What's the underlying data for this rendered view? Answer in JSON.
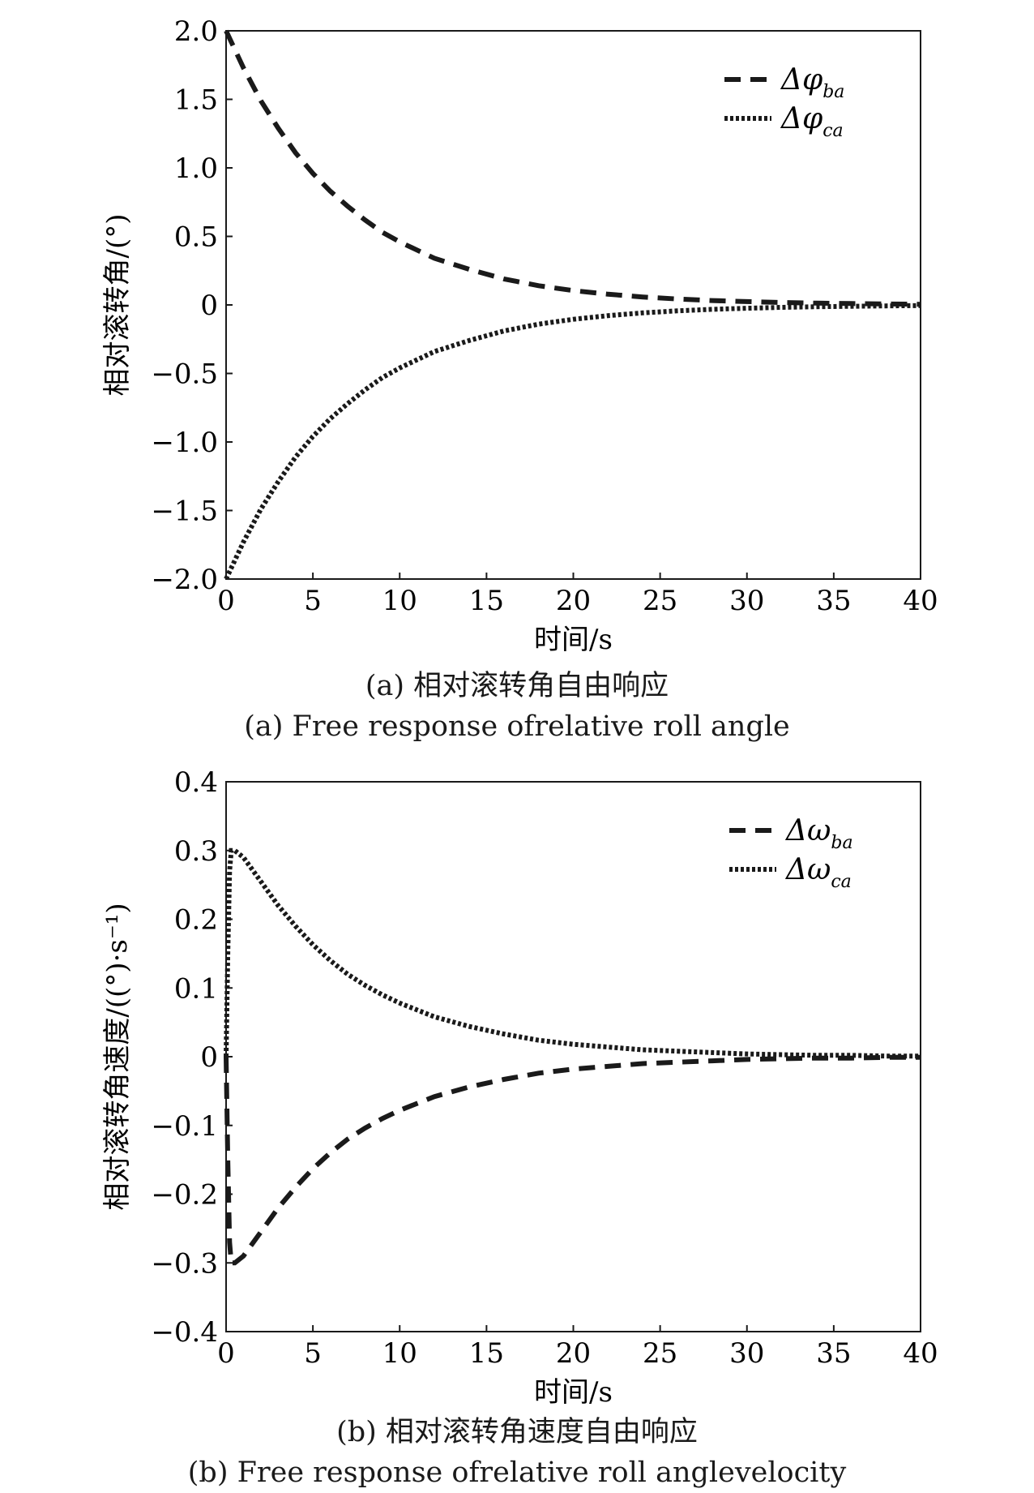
{
  "chart_data": [
    {
      "type": "line",
      "xlabel": "时间/s",
      "ylabel": "相对滚转角/(°)",
      "xlim": [
        0,
        40
      ],
      "ylim": [
        -2.0,
        2.0
      ],
      "xticks": [
        "0",
        "5",
        "10",
        "15",
        "20",
        "25",
        "30",
        "35",
        "40"
      ],
      "yticks": [
        "2.0",
        "1.5",
        "1.0",
        "0.5",
        "0",
        "−0.5",
        "−1.0",
        "−1.5",
        "−2.0"
      ],
      "legend_position": "top-right",
      "grid": false,
      "series": [
        {
          "name": "Δφba",
          "symbol": "Δφ",
          "sub": "ba",
          "style": "dashed",
          "x": [
            0,
            1,
            2,
            3,
            4,
            5,
            6,
            7,
            8,
            9,
            10,
            12,
            14,
            16,
            18,
            20,
            22,
            24,
            26,
            28,
            30,
            32,
            34,
            36,
            38,
            40
          ],
          "y": [
            2.0,
            1.73,
            1.49,
            1.29,
            1.11,
            0.96,
            0.83,
            0.72,
            0.62,
            0.53,
            0.46,
            0.34,
            0.26,
            0.19,
            0.14,
            0.105,
            0.078,
            0.058,
            0.043,
            0.032,
            0.024,
            0.018,
            0.013,
            0.01,
            0.007,
            0.005
          ]
        },
        {
          "name": "Δφca",
          "symbol": "Δφ",
          "sub": "ca",
          "style": "dotted",
          "x": [
            0,
            1,
            2,
            3,
            4,
            5,
            6,
            7,
            8,
            9,
            10,
            12,
            14,
            16,
            18,
            20,
            22,
            24,
            26,
            28,
            30,
            32,
            34,
            36,
            38,
            40
          ],
          "y": [
            -2.0,
            -1.73,
            -1.49,
            -1.29,
            -1.11,
            -0.96,
            -0.83,
            -0.72,
            -0.62,
            -0.53,
            -0.46,
            -0.34,
            -0.26,
            -0.19,
            -0.14,
            -0.105,
            -0.078,
            -0.058,
            -0.043,
            -0.032,
            -0.024,
            -0.018,
            -0.013,
            -0.01,
            -0.007,
            -0.005
          ]
        }
      ]
    },
    {
      "type": "line",
      "xlabel": "时间/s",
      "ylabel": "相对滚转角速度/((°)·s⁻¹)",
      "xlim": [
        0,
        40
      ],
      "ylim": [
        -0.4,
        0.4
      ],
      "xticks": [
        "0",
        "5",
        "10",
        "15",
        "20",
        "25",
        "30",
        "35",
        "40"
      ],
      "yticks": [
        "0.4",
        "0.3",
        "0.2",
        "0.1",
        "0",
        "−0.1",
        "−0.2",
        "−0.3",
        "−0.4"
      ],
      "legend_position": "top-right",
      "grid": false,
      "series": [
        {
          "name": "Δωba",
          "symbol": "Δω",
          "sub": "ba",
          "style": "dashed",
          "x": [
            0,
            0.1,
            0.2,
            0.3,
            0.5,
            1,
            2,
            3,
            4,
            5,
            6,
            7,
            8,
            9,
            10,
            12,
            14,
            16,
            18,
            20,
            22,
            24,
            26,
            28,
            30,
            32,
            34,
            36,
            38,
            40
          ],
          "y": [
            0,
            -0.15,
            -0.27,
            -0.3,
            -0.3,
            -0.29,
            -0.255,
            -0.22,
            -0.19,
            -0.163,
            -0.14,
            -0.12,
            -0.104,
            -0.09,
            -0.078,
            -0.058,
            -0.044,
            -0.033,
            -0.024,
            -0.018,
            -0.014,
            -0.01,
            -0.008,
            -0.006,
            -0.004,
            -0.003,
            -0.002,
            -0.002,
            -0.001,
            -0.001
          ]
        },
        {
          "name": "Δωca",
          "symbol": "Δω",
          "sub": "ca",
          "style": "dotted",
          "x": [
            0,
            0.1,
            0.2,
            0.3,
            0.5,
            1,
            2,
            3,
            4,
            5,
            6,
            7,
            8,
            9,
            10,
            12,
            14,
            16,
            18,
            20,
            22,
            24,
            26,
            28,
            30,
            32,
            34,
            36,
            38,
            40
          ],
          "y": [
            0,
            0.15,
            0.27,
            0.3,
            0.3,
            0.29,
            0.255,
            0.22,
            0.19,
            0.163,
            0.14,
            0.12,
            0.104,
            0.09,
            0.078,
            0.058,
            0.044,
            0.033,
            0.024,
            0.018,
            0.014,
            0.01,
            0.008,
            0.006,
            0.004,
            0.003,
            0.002,
            0.002,
            0.001,
            0.001
          ]
        }
      ]
    }
  ],
  "captions": {
    "a_cn": "(a) 相对滚转角自由响应",
    "a_en": "(a) Free response ofrelative roll angle",
    "b_cn": "(b) 相对滚转角速度自由响应",
    "b_en": "(b) Free response ofrelative roll anglevelocity"
  }
}
